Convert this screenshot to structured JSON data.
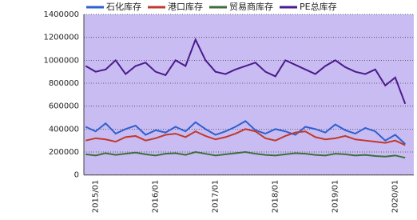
{
  "chart_data": {
    "type": "line",
    "categories": [
      null,
      "2015/01",
      null,
      null,
      null,
      null,
      null,
      "2016/01",
      null,
      null,
      null,
      null,
      null,
      "2017/01",
      null,
      null,
      null,
      null,
      null,
      "2018/01",
      null,
      null,
      null,
      null,
      null,
      "2019/01",
      null,
      null,
      null,
      null,
      null,
      "2020/01",
      null
    ],
    "series": [
      {
        "name": "石化库存",
        "color": "#2f5fd0",
        "values": [
          420000,
          380000,
          450000,
          360000,
          400000,
          430000,
          350000,
          390000,
          370000,
          420000,
          380000,
          460000,
          400000,
          350000,
          380000,
          420000,
          470000,
          390000,
          360000,
          400000,
          380000,
          350000,
          420000,
          400000,
          370000,
          440000,
          390000,
          360000,
          410000,
          380000,
          300000,
          350000,
          270000
        ]
      },
      {
        "name": "港口库存",
        "color": "#c0392b",
        "values": [
          300000,
          320000,
          310000,
          290000,
          330000,
          340000,
          300000,
          320000,
          350000,
          360000,
          330000,
          380000,
          340000,
          310000,
          330000,
          360000,
          400000,
          380000,
          320000,
          300000,
          340000,
          370000,
          380000,
          330000,
          310000,
          320000,
          340000,
          310000,
          300000,
          290000,
          280000,
          300000,
          260000
        ]
      },
      {
        "name": "贸易商库存",
        "color": "#3c6e3c",
        "values": [
          180000,
          170000,
          190000,
          175000,
          185000,
          195000,
          180000,
          170000,
          185000,
          190000,
          175000,
          200000,
          185000,
          170000,
          180000,
          190000,
          200000,
          185000,
          175000,
          170000,
          180000,
          190000,
          185000,
          175000,
          170000,
          185000,
          180000,
          170000,
          175000,
          165000,
          160000,
          170000,
          150000
        ]
      },
      {
        "name": "PE总库存",
        "color": "#4b1a8c",
        "values": [
          950000,
          900000,
          920000,
          1000000,
          880000,
          950000,
          980000,
          900000,
          870000,
          1000000,
          950000,
          1180000,
          1000000,
          900000,
          880000,
          920000,
          950000,
          980000,
          900000,
          860000,
          1000000,
          960000,
          920000,
          880000,
          950000,
          1000000,
          940000,
          900000,
          880000,
          920000,
          780000,
          850000,
          620000
        ]
      }
    ],
    "ylim": [
      0,
      1400000
    ],
    "yticks": [
      0,
      200000,
      400000,
      600000,
      800000,
      1000000,
      1200000,
      1400000
    ],
    "grid": true
  }
}
